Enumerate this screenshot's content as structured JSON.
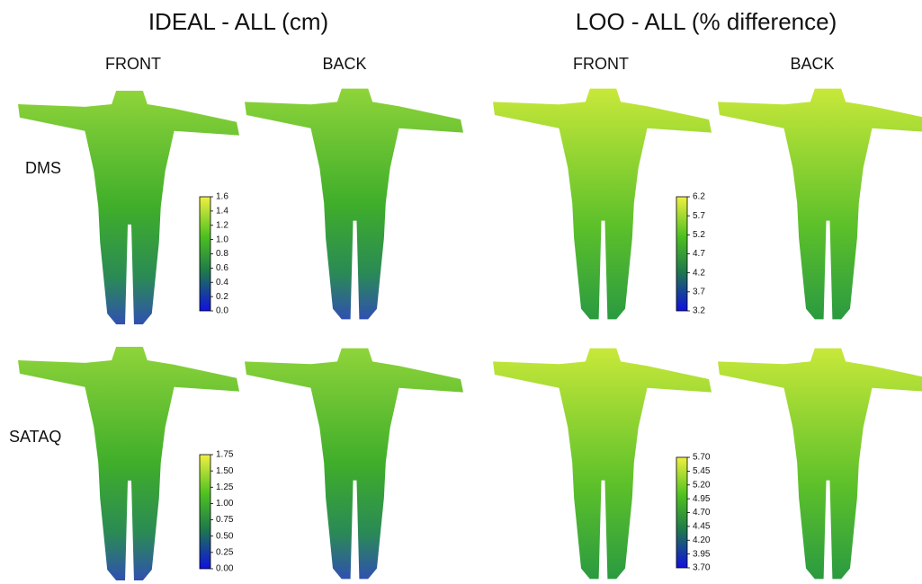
{
  "titles": [
    "IDEAL - ALL (cm)",
    "LOO - ALL (% difference)"
  ],
  "columns": [
    "FRONT",
    "BACK",
    "FRONT",
    "BACK"
  ],
  "rows": [
    "DMS",
    "SATAQ"
  ],
  "colorbars": [
    {
      "ticks": [
        "0.0",
        "0.2",
        "0.4",
        "0.6",
        "0.8",
        "1.0",
        "1.2",
        "1.4",
        "1.6"
      ]
    },
    {
      "ticks": [
        "3.2",
        "3.7",
        "4.2",
        "4.7",
        "5.2",
        "5.7",
        "6.2"
      ]
    },
    {
      "ticks": [
        "0.00",
        "0.25",
        "0.50",
        "0.75",
        "1.00",
        "1.25",
        "1.50",
        "1.75"
      ]
    },
    {
      "ticks": [
        "3.70",
        "3.95",
        "4.20",
        "4.45",
        "4.70",
        "4.95",
        "5.20",
        "5.45",
        "5.70"
      ]
    }
  ]
}
